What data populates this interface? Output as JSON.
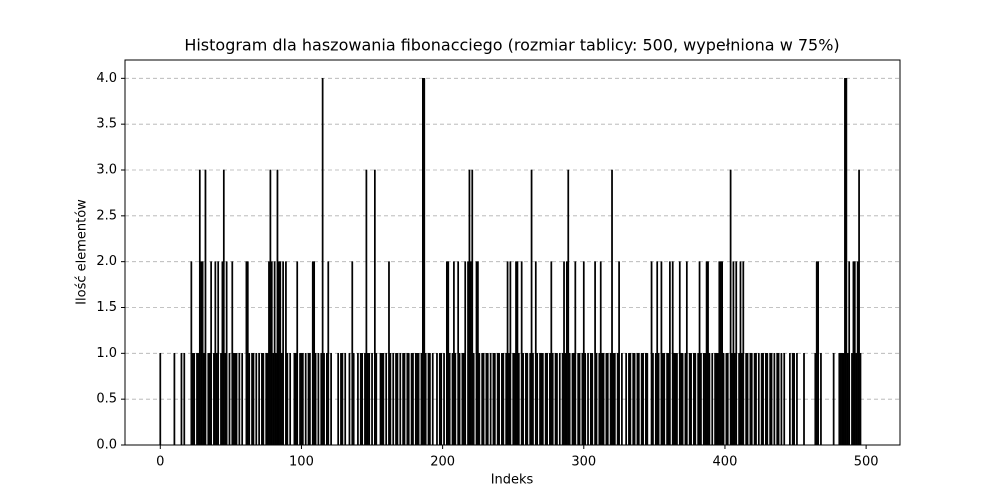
{
  "chart_data": {
    "type": "bar",
    "title": "Histogram dla haszowania fibonacciego (rozmiar tablicy: 500, wypełniona w 75%)",
    "x_label": "Indeks",
    "y_label": "Ilość elementów",
    "color": "#000000",
    "grid": true,
    "xlim": [
      -25,
      524
    ],
    "ylim": [
      0,
      4.2
    ],
    "xticks": [
      0,
      100,
      200,
      300,
      400,
      500
    ],
    "yticks": [
      {
        "value": 0,
        "label": "0.0"
      },
      {
        "value": 0.5,
        "label": "0.5"
      },
      {
        "value": 1,
        "label": "1.0"
      },
      {
        "value": 1.5,
        "label": "1.5"
      },
      {
        "value": 2,
        "label": "2.0"
      },
      {
        "value": 2.5,
        "label": "2.5"
      },
      {
        "value": 3,
        "label": "3.0"
      },
      {
        "value": 3.5,
        "label": "3.5"
      },
      {
        "value": 4,
        "label": "4.0"
      }
    ],
    "x": [
      0,
      1,
      2,
      3,
      4,
      5,
      6,
      7,
      8,
      9,
      10,
      11,
      12,
      13,
      14,
      15,
      16,
      17,
      18,
      19,
      20,
      21,
      22,
      23,
      24,
      25,
      26,
      27,
      28,
      29,
      30,
      31,
      32,
      33,
      34,
      35,
      36,
      37,
      38,
      39,
      40,
      41,
      42,
      43,
      44,
      45,
      46,
      47,
      48,
      49,
      50,
      51,
      52,
      53,
      54,
      55,
      56,
      57,
      58,
      59,
      60,
      61,
      62,
      63,
      64,
      65,
      66,
      67,
      68,
      69,
      70,
      71,
      72,
      73,
      74,
      75,
      76,
      77,
      78,
      79,
      80,
      81,
      82,
      83,
      84,
      85,
      86,
      87,
      88,
      89,
      90,
      91,
      92,
      93,
      94,
      95,
      96,
      97,
      98,
      99,
      100,
      101,
      102,
      103,
      104,
      105,
      106,
      107,
      108,
      109,
      110,
      111,
      112,
      113,
      114,
      115,
      116,
      117,
      118,
      119,
      120,
      121,
      122,
      123,
      124,
      125,
      126,
      127,
      128,
      129,
      130,
      131,
      132,
      133,
      134,
      135,
      136,
      137,
      138,
      139,
      140,
      141,
      142,
      143,
      144,
      145,
      146,
      147,
      148,
      149,
      150,
      151,
      152,
      153,
      154,
      155,
      156,
      157,
      158,
      159,
      160,
      161,
      162,
      163,
      164,
      165,
      166,
      167,
      168,
      169,
      170,
      171,
      172,
      173,
      174,
      175,
      176,
      177,
      178,
      179,
      180,
      181,
      182,
      183,
      184,
      185,
      186,
      187,
      188,
      189,
      190,
      191,
      192,
      193,
      194,
      195,
      196,
      197,
      198,
      199,
      200,
      201,
      202,
      203,
      204,
      205,
      206,
      207,
      208,
      209,
      210,
      211,
      212,
      213,
      214,
      215,
      216,
      217,
      218,
      219,
      220,
      221,
      222,
      223,
      224,
      225,
      226,
      227,
      228,
      229,
      230,
      231,
      232,
      233,
      234,
      235,
      236,
      237,
      238,
      239,
      240,
      241,
      242,
      243,
      244,
      245,
      246,
      247,
      248,
      249,
      250,
      251,
      252,
      253,
      254,
      255,
      256,
      257,
      258,
      259,
      260,
      261,
      262,
      263,
      264,
      265,
      266,
      267,
      268,
      269,
      270,
      271,
      272,
      273,
      274,
      275,
      276,
      277,
      278,
      279,
      280,
      281,
      282,
      283,
      284,
      285,
      286,
      287,
      288,
      289,
      290,
      291,
      292,
      293,
      294,
      295,
      296,
      297,
      298,
      299,
      300,
      301,
      302,
      303,
      304,
      305,
      306,
      307,
      308,
      309,
      310,
      311,
      312,
      313,
      314,
      315,
      316,
      317,
      318,
      319,
      320,
      321,
      322,
      323,
      324,
      325,
      326,
      327,
      328,
      329,
      330,
      331,
      332,
      333,
      334,
      335,
      336,
      337,
      338,
      339,
      340,
      341,
      342,
      343,
      344,
      345,
      346,
      347,
      348,
      349,
      350,
      351,
      352,
      353,
      354,
      355,
      356,
      357,
      358,
      359,
      360,
      361,
      362,
      363,
      364,
      365,
      366,
      367,
      368,
      369,
      370,
      371,
      372,
      373,
      374,
      375,
      376,
      377,
      378,
      379,
      380,
      381,
      382,
      383,
      384,
      385,
      386,
      387,
      388,
      389,
      390,
      391,
      392,
      393,
      394,
      395,
      396,
      397,
      398,
      399,
      400,
      401,
      402,
      403,
      404,
      405,
      406,
      407,
      408,
      409,
      410,
      411,
      412,
      413,
      414,
      415,
      416,
      417,
      418,
      419,
      420,
      421,
      422,
      423,
      424,
      425,
      426,
      427,
      428,
      429,
      430,
      431,
      432,
      433,
      434,
      435,
      436,
      437,
      438,
      439,
      440,
      441,
      442,
      443,
      444,
      445,
      446,
      447,
      448,
      449,
      450,
      451,
      452,
      453,
      454,
      455,
      456,
      457,
      458,
      459,
      460,
      461,
      462,
      463,
      464,
      465,
      466,
      467,
      468,
      469,
      470,
      471,
      472,
      473,
      474,
      475,
      476,
      477,
      478,
      479,
      480,
      481,
      482,
      483,
      484,
      485,
      486,
      487,
      488,
      489,
      490,
      491,
      492,
      493,
      494,
      495,
      496,
      497,
      498,
      499
    ],
    "values": [
      1,
      0,
      0,
      0,
      0,
      0,
      0,
      0,
      0,
      0,
      1,
      0,
      0,
      0,
      0,
      1,
      0,
      1,
      0,
      0,
      0,
      0,
      2,
      1,
      1,
      0,
      1,
      1,
      3,
      2,
      2,
      1,
      3,
      0,
      1,
      1,
      2,
      0,
      1,
      2,
      1,
      2,
      0,
      1,
      2,
      3,
      1,
      2,
      0,
      1,
      0,
      2,
      1,
      1,
      1,
      0,
      1,
      0,
      1,
      0,
      0,
      2,
      2,
      1,
      0,
      1,
      1,
      0,
      1,
      0,
      1,
      0,
      1,
      1,
      0,
      1,
      1,
      2,
      3,
      2,
      1,
      2,
      1,
      3,
      2,
      2,
      1,
      2,
      0,
      2,
      1,
      0,
      1,
      0,
      0,
      1,
      1,
      2,
      0,
      1,
      1,
      1,
      0,
      1,
      0,
      1,
      1,
      0,
      2,
      2,
      1,
      0,
      1,
      0,
      1,
      4,
      1,
      0,
      1,
      2,
      0,
      1,
      0,
      0,
      0,
      0,
      1,
      0,
      1,
      1,
      0,
      1,
      0,
      0,
      1,
      0,
      2,
      1,
      0,
      0,
      1,
      0,
      1,
      1,
      0,
      1,
      3,
      1,
      1,
      0,
      1,
      0,
      3,
      1,
      0,
      0,
      1,
      1,
      1,
      0,
      1,
      0,
      2,
      1,
      0,
      1,
      0,
      1,
      1,
      0,
      1,
      0,
      1,
      1,
      0,
      1,
      1,
      0,
      1,
      1,
      0,
      1,
      1,
      1,
      0,
      1,
      4,
      4,
      1,
      0,
      1,
      1,
      0,
      1,
      0,
      0,
      1,
      0,
      1,
      1,
      0,
      1,
      0,
      2,
      2,
      1,
      0,
      1,
      2,
      1,
      0,
      2,
      1,
      0,
      1,
      1,
      2,
      0,
      2,
      3,
      2,
      3,
      1,
      0,
      2,
      2,
      1,
      0,
      1,
      1,
      0,
      1,
      1,
      0,
      1,
      0,
      1,
      1,
      0,
      1,
      1,
      0,
      1,
      1,
      0,
      1,
      2,
      1,
      2,
      0,
      1,
      1,
      2,
      2,
      1,
      0,
      2,
      1,
      0,
      1,
      1,
      0,
      1,
      3,
      1,
      0,
      2,
      1,
      0,
      1,
      1,
      1,
      0,
      1,
      1,
      0,
      1,
      2,
      1,
      0,
      1,
      1,
      0,
      1,
      0,
      1,
      2,
      1,
      2,
      3,
      1,
      0,
      1,
      1,
      2,
      0,
      1,
      1,
      0,
      1,
      2,
      1,
      0,
      1,
      0,
      1,
      1,
      0,
      2,
      1,
      0,
      1,
      2,
      1,
      1,
      0,
      1,
      1,
      0,
      1,
      3,
      1,
      1,
      0,
      1,
      2,
      0,
      1,
      0,
      0,
      1,
      0,
      1,
      1,
      0,
      1,
      1,
      0,
      1,
      1,
      0,
      1,
      1,
      0,
      1,
      1,
      0,
      0,
      2,
      1,
      0,
      1,
      2,
      1,
      0,
      2,
      1,
      1,
      0,
      1,
      1,
      2,
      0,
      2,
      1,
      1,
      1,
      0,
      2,
      1,
      1,
      0,
      1,
      2,
      0,
      1,
      1,
      0,
      1,
      1,
      0,
      1,
      2,
      1,
      0,
      1,
      1,
      2,
      2,
      1,
      0,
      1,
      0,
      1,
      1,
      1,
      2,
      2,
      2,
      1,
      0,
      1,
      1,
      0,
      3,
      1,
      2,
      1,
      2,
      0,
      1,
      2,
      1,
      2,
      0,
      1,
      1,
      0,
      1,
      1,
      0,
      1,
      1,
      0,
      1,
      0,
      1,
      1,
      0,
      1,
      1,
      0,
      1,
      1,
      0,
      1,
      0,
      1,
      1,
      0,
      1,
      0,
      1,
      0,
      0,
      0,
      1,
      0,
      1,
      1,
      0,
      1,
      0,
      0,
      0,
      0,
      1,
      0,
      0,
      0,
      0,
      0,
      0,
      0,
      1,
      2,
      2,
      0,
      1,
      0,
      0,
      0,
      0,
      0,
      0,
      0,
      0,
      1,
      0,
      0,
      0,
      1,
      1,
      1,
      1,
      4,
      4,
      1,
      2,
      0,
      1,
      2,
      2,
      1,
      2,
      3,
      1,
      0,
      0,
      0
    ]
  }
}
